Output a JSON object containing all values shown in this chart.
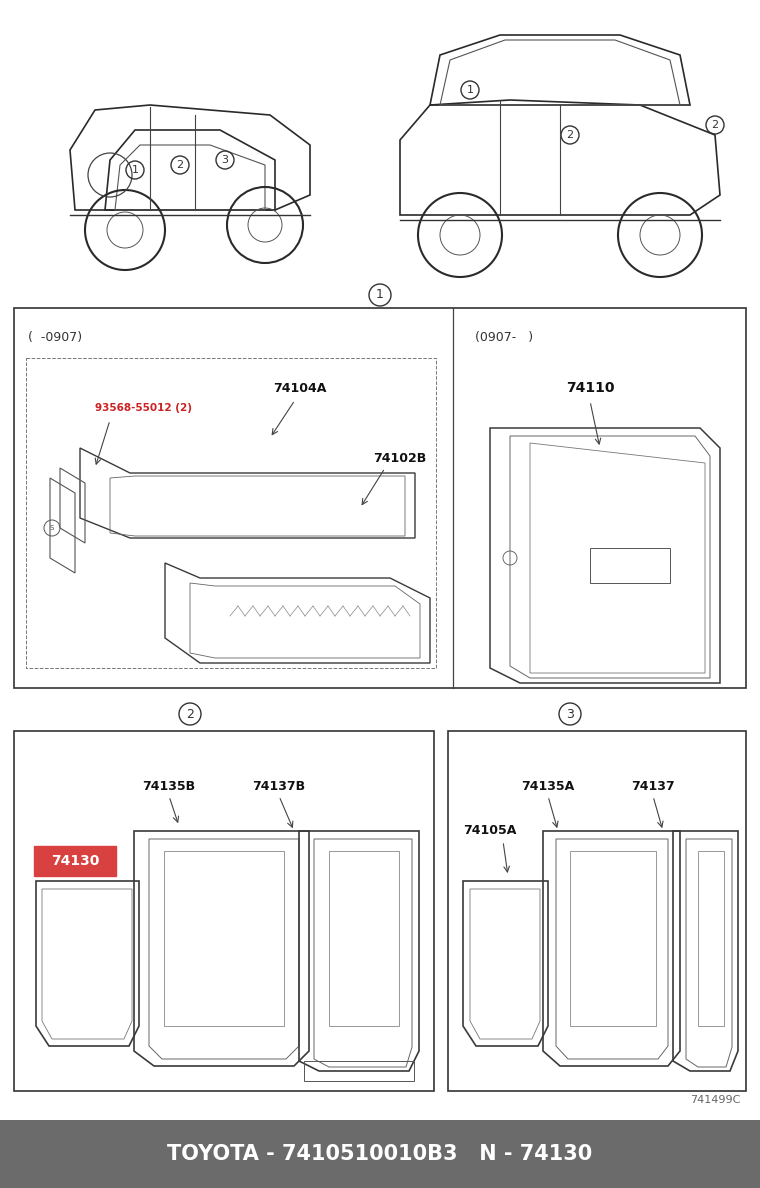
{
  "title": "TOYOTA - 7410510010B3   N - 74130",
  "title_bg": "#6b6b6b",
  "title_color": "#ffffff",
  "title_fontsize": 15,
  "bg_color": "#ffffff",
  "highlight_label": "74130",
  "highlight_color": "#d94040",
  "highlight_text_color": "#ffffff",
  "section1_left_sublabel": "(  -0907)",
  "section1_right_sublabel": "(0907-   )",
  "footer_text": "741499C",
  "label_74104A": "74104A",
  "label_74102B": "74102B",
  "label_93568": "93568-55012 (2)",
  "label_74110": "74110",
  "label_74135B": "74135B",
  "label_74137B": "74137B",
  "label_74135A": "74135A",
  "label_74105A": "74105A",
  "label_74137": "74137",
  "circle1_label": "1",
  "circle2_label": "2",
  "circle3_label": "3"
}
